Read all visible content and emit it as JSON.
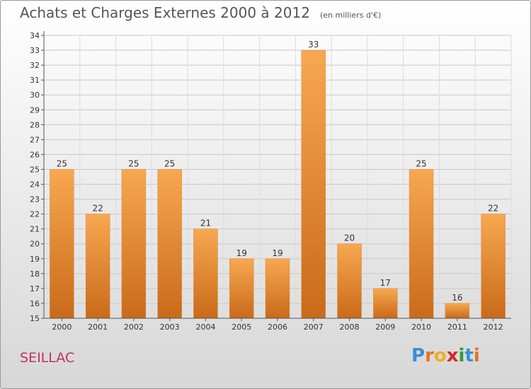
{
  "header": {
    "title": "Achats et Charges Externes 2000 à 2012",
    "unit": "(en milliers d'€)"
  },
  "footer": {
    "commune": "SEILLAC",
    "brand_letters": [
      "P",
      "r",
      "o",
      "x",
      "i",
      "t",
      "i"
    ],
    "brand_colors": [
      "#3a8fd6",
      "#e8731c",
      "#f0b020",
      "#d02a2a",
      "#2e9c3a",
      "#3a8fd6",
      "#e8731c"
    ]
  },
  "chart_data": {
    "type": "bar",
    "categories": [
      "2000",
      "2001",
      "2002",
      "2003",
      "2004",
      "2005",
      "2006",
      "2007",
      "2008",
      "2009",
      "2010",
      "2011",
      "2012"
    ],
    "values": [
      25,
      22,
      25,
      25,
      21,
      19,
      19,
      33,
      20,
      17,
      25,
      16,
      22
    ],
    "ylim": [
      15,
      34
    ],
    "yticks": [
      15,
      16,
      17,
      18,
      19,
      20,
      21,
      22,
      23,
      24,
      25,
      26,
      27,
      28,
      29,
      30,
      31,
      32,
      33,
      34
    ],
    "grid": true,
    "bar_color": "#f0923a",
    "bar_color_dark": "#c96a1a",
    "bar_color_light": "#f7a850"
  }
}
